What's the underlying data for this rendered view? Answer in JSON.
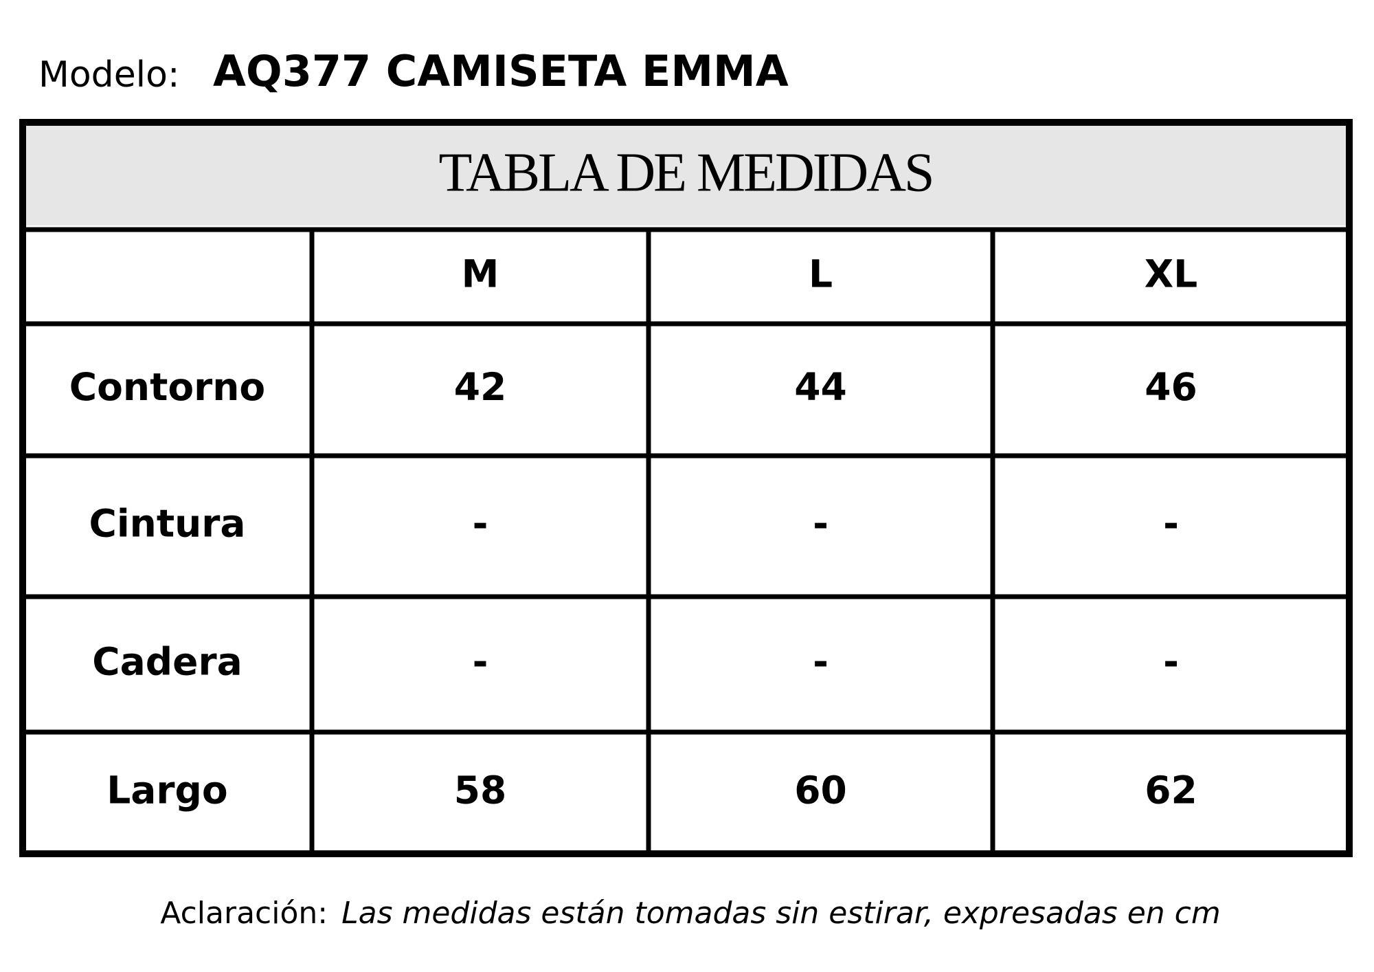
{
  "header": {
    "model_label": "Modelo:",
    "model": "AQ377 CAMISETA EMMA"
  },
  "table": {
    "title": "TABLA DE MEDIDAS",
    "columns": [
      "M",
      "L",
      "XL"
    ],
    "rows": [
      {
        "label": "Contorno",
        "values": [
          42,
          44,
          46
        ]
      },
      {
        "label": "Cintura",
        "values": [
          "-",
          "-",
          "-"
        ]
      },
      {
        "label": "Cadera",
        "values": [
          "-",
          "-",
          "-"
        ]
      },
      {
        "label": "Largo",
        "values": [
          58,
          60,
          62
        ]
      }
    ]
  },
  "note": {
    "label": "Aclaración:",
    "text": "Las medidas están tomadas sin estirar, expresadas en cm"
  }
}
